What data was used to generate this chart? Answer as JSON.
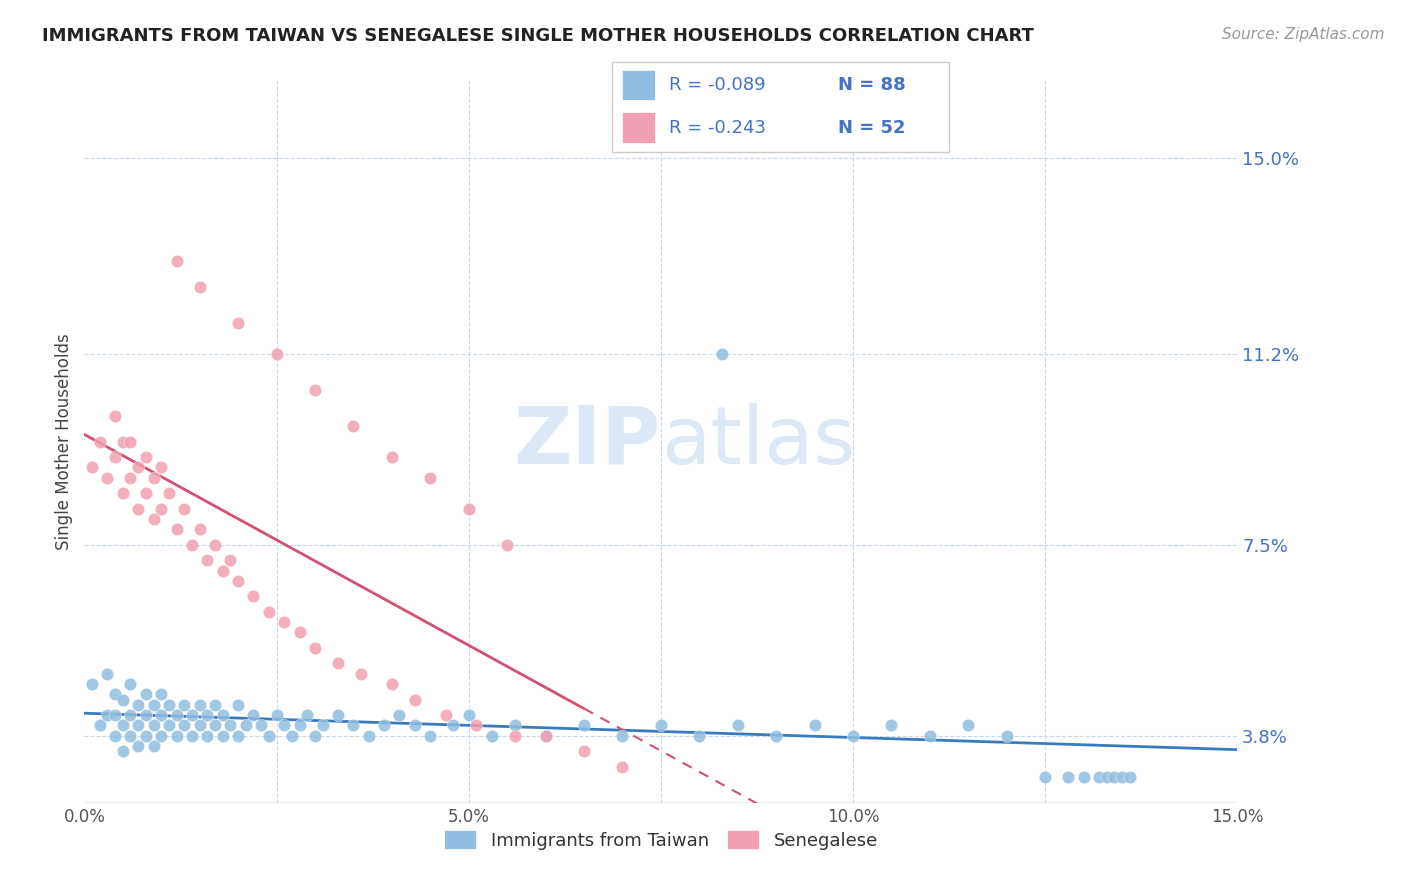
{
  "title": "IMMIGRANTS FROM TAIWAN VS SENEGALESE SINGLE MOTHER HOUSEHOLDS CORRELATION CHART",
  "source": "Source: ZipAtlas.com",
  "ylabel": "Single Mother Households",
  "xlim": [
    0.0,
    0.15
  ],
  "ylim": [
    0.025,
    0.165
  ],
  "yticks": [
    0.038,
    0.075,
    0.112,
    0.15
  ],
  "ytick_labels": [
    "3.8%",
    "7.5%",
    "11.2%",
    "15.0%"
  ],
  "xticks": [
    0.0,
    0.025,
    0.05,
    0.075,
    0.1,
    0.125,
    0.15
  ],
  "xtick_labels": [
    "0.0%",
    "",
    "5.0%",
    "",
    "10.0%",
    "",
    "15.0%"
  ],
  "legend_r1": "R = -0.089",
  "legend_n1": "N = 88",
  "legend_r2": "R = -0.243",
  "legend_n2": "N = 52",
  "blue_color": "#90bde0",
  "pink_color": "#f0a0b0",
  "line_blue": "#3a7bbf",
  "line_pink": "#d45070",
  "text_blue": "#4472c4",
  "watermark_color": "#dce8f5",
  "taiwan_x": [
    0.001,
    0.002,
    0.003,
    0.003,
    0.004,
    0.004,
    0.004,
    0.005,
    0.005,
    0.005,
    0.006,
    0.006,
    0.006,
    0.007,
    0.007,
    0.007,
    0.008,
    0.008,
    0.008,
    0.009,
    0.009,
    0.009,
    0.01,
    0.01,
    0.01,
    0.011,
    0.011,
    0.012,
    0.012,
    0.013,
    0.013,
    0.014,
    0.014,
    0.015,
    0.015,
    0.016,
    0.016,
    0.017,
    0.017,
    0.018,
    0.018,
    0.019,
    0.02,
    0.02,
    0.021,
    0.022,
    0.023,
    0.024,
    0.025,
    0.026,
    0.027,
    0.028,
    0.029,
    0.03,
    0.031,
    0.033,
    0.035,
    0.037,
    0.039,
    0.041,
    0.043,
    0.045,
    0.048,
    0.05,
    0.053,
    0.056,
    0.06,
    0.065,
    0.07,
    0.075,
    0.08,
    0.085,
    0.09,
    0.095,
    0.1,
    0.105,
    0.11,
    0.115,
    0.083,
    0.12,
    0.125,
    0.128,
    0.13,
    0.132,
    0.133,
    0.134,
    0.135,
    0.136
  ],
  "taiwan_y": [
    0.048,
    0.04,
    0.042,
    0.05,
    0.038,
    0.042,
    0.046,
    0.035,
    0.04,
    0.045,
    0.038,
    0.042,
    0.048,
    0.036,
    0.04,
    0.044,
    0.038,
    0.042,
    0.046,
    0.036,
    0.04,
    0.044,
    0.038,
    0.042,
    0.046,
    0.04,
    0.044,
    0.038,
    0.042,
    0.04,
    0.044,
    0.038,
    0.042,
    0.04,
    0.044,
    0.038,
    0.042,
    0.04,
    0.044,
    0.038,
    0.042,
    0.04,
    0.038,
    0.044,
    0.04,
    0.042,
    0.04,
    0.038,
    0.042,
    0.04,
    0.038,
    0.04,
    0.042,
    0.038,
    0.04,
    0.042,
    0.04,
    0.038,
    0.04,
    0.042,
    0.04,
    0.038,
    0.04,
    0.042,
    0.038,
    0.04,
    0.038,
    0.04,
    0.038,
    0.04,
    0.038,
    0.04,
    0.038,
    0.04,
    0.038,
    0.04,
    0.038,
    0.04,
    0.112,
    0.038,
    0.03,
    0.03,
    0.03,
    0.03,
    0.03,
    0.03,
    0.03,
    0.03
  ],
  "senegal_x": [
    0.001,
    0.002,
    0.003,
    0.004,
    0.004,
    0.005,
    0.005,
    0.006,
    0.006,
    0.007,
    0.007,
    0.008,
    0.008,
    0.009,
    0.009,
    0.01,
    0.01,
    0.011,
    0.012,
    0.013,
    0.014,
    0.015,
    0.016,
    0.017,
    0.018,
    0.019,
    0.02,
    0.022,
    0.024,
    0.026,
    0.028,
    0.03,
    0.033,
    0.036,
    0.04,
    0.043,
    0.047,
    0.051,
    0.056,
    0.06,
    0.065,
    0.07,
    0.012,
    0.015,
    0.02,
    0.025,
    0.03,
    0.035,
    0.04,
    0.045,
    0.05,
    0.055
  ],
  "senegal_y": [
    0.09,
    0.095,
    0.088,
    0.092,
    0.1,
    0.085,
    0.095,
    0.088,
    0.095,
    0.082,
    0.09,
    0.085,
    0.092,
    0.08,
    0.088,
    0.082,
    0.09,
    0.085,
    0.078,
    0.082,
    0.075,
    0.078,
    0.072,
    0.075,
    0.07,
    0.072,
    0.068,
    0.065,
    0.062,
    0.06,
    0.058,
    0.055,
    0.052,
    0.05,
    0.048,
    0.045,
    0.042,
    0.04,
    0.038,
    0.038,
    0.035,
    0.032,
    0.13,
    0.125,
    0.118,
    0.112,
    0.105,
    0.098,
    0.092,
    0.088,
    0.082,
    0.075
  ]
}
